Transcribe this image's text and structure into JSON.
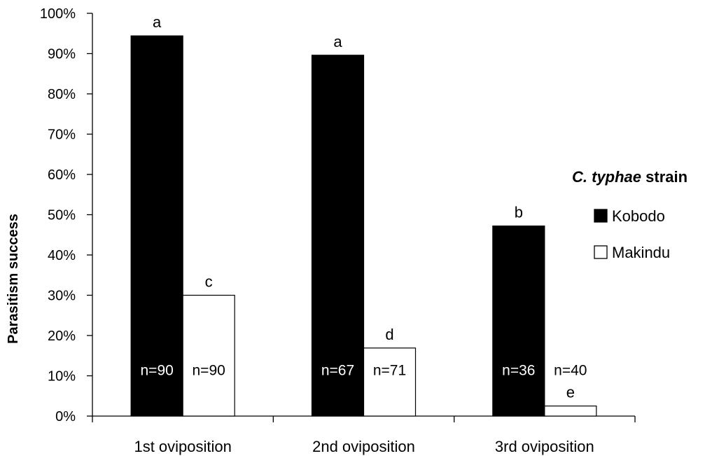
{
  "chart_data": {
    "type": "bar",
    "categories": [
      "1st oviposition",
      "2nd oviposition",
      "3rd oviposition"
    ],
    "ylabel": "Parasitism success",
    "xlabel": "",
    "ylim": [
      0,
      100
    ],
    "yticks": [
      "0%",
      "10%",
      "20%",
      "30%",
      "40%",
      "50%",
      "60%",
      "70%",
      "80%",
      "90%",
      "100%"
    ],
    "grid": false,
    "legend": {
      "title_italic": "C. typhae",
      "title_rest": " strain",
      "placement": "right"
    },
    "series": [
      {
        "name": "Kobodo",
        "color": "#000000",
        "values": [
          94.4,
          89.6,
          47.2
        ],
        "n_labels": [
          "n=90",
          "n=67",
          "n=36"
        ],
        "sig_labels": [
          "a",
          "a",
          "b"
        ]
      },
      {
        "name": "Makindu",
        "color": "#ffffff",
        "values": [
          30.0,
          16.9,
          2.5
        ],
        "n_labels": [
          "n=90",
          "n=71",
          "n=40"
        ],
        "sig_labels": [
          "c",
          "d",
          "e"
        ]
      }
    ]
  }
}
